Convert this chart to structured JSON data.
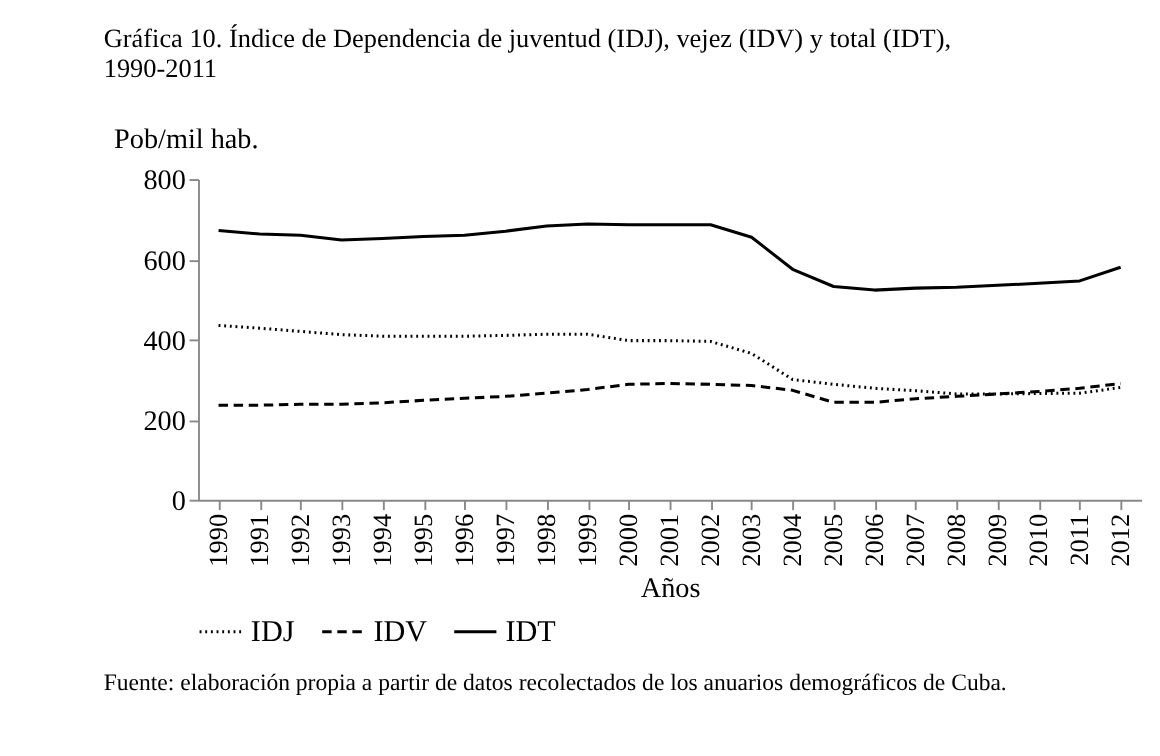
{
  "chart_data": {
    "type": "line",
    "title": "Gráfica 10. Índice de Dependencia de juventud (IDJ), vejez (IDV) y total (IDT), 1990-2011",
    "xlabel": "Años",
    "ylabel": "Pob/mil hab.",
    "categories": [
      "1990",
      "1991",
      "1992",
      "1993",
      "1994",
      "1995",
      "1996",
      "1997",
      "1998",
      "1999",
      "2000",
      "2001",
      "2002",
      "2003",
      "2004",
      "2005",
      "2006",
      "2007",
      "2008",
      "2009",
      "2010",
      "2011",
      "2012"
    ],
    "series": [
      {
        "name": "IDJ",
        "color": "#000000",
        "line_style": "dotted",
        "values": [
          435,
          428,
          420,
          412,
          408,
          408,
          408,
          410,
          413,
          413,
          397,
          397,
          395,
          365,
          300,
          288,
          278,
          272,
          264,
          264,
          265,
          266,
          280
        ]
      },
      {
        "name": "IDV",
        "color": "#000000",
        "line_style": "dashed",
        "values": [
          236,
          236,
          238,
          238,
          242,
          248,
          253,
          258,
          266,
          275,
          288,
          290,
          288,
          285,
          273,
          243,
          243,
          252,
          258,
          264,
          270,
          278,
          290
        ]
      },
      {
        "name": "IDT",
        "color": "#000000",
        "line_style": "solid",
        "values": [
          672,
          663,
          660,
          648,
          652,
          657,
          660,
          670,
          683,
          688,
          686,
          686,
          686,
          655,
          575,
          532,
          523,
          528,
          530,
          535,
          540,
          546,
          580
        ]
      }
    ],
    "ylim": [
      0,
      800
    ],
    "yticks": [
      0,
      200,
      400,
      600,
      800
    ],
    "grid": false,
    "legend": "bottom",
    "marker": "none",
    "annotations": [
      "Fuente: elaboración propia a partir de datos recolectados de los anuarios demográficos de Cuba."
    ]
  }
}
